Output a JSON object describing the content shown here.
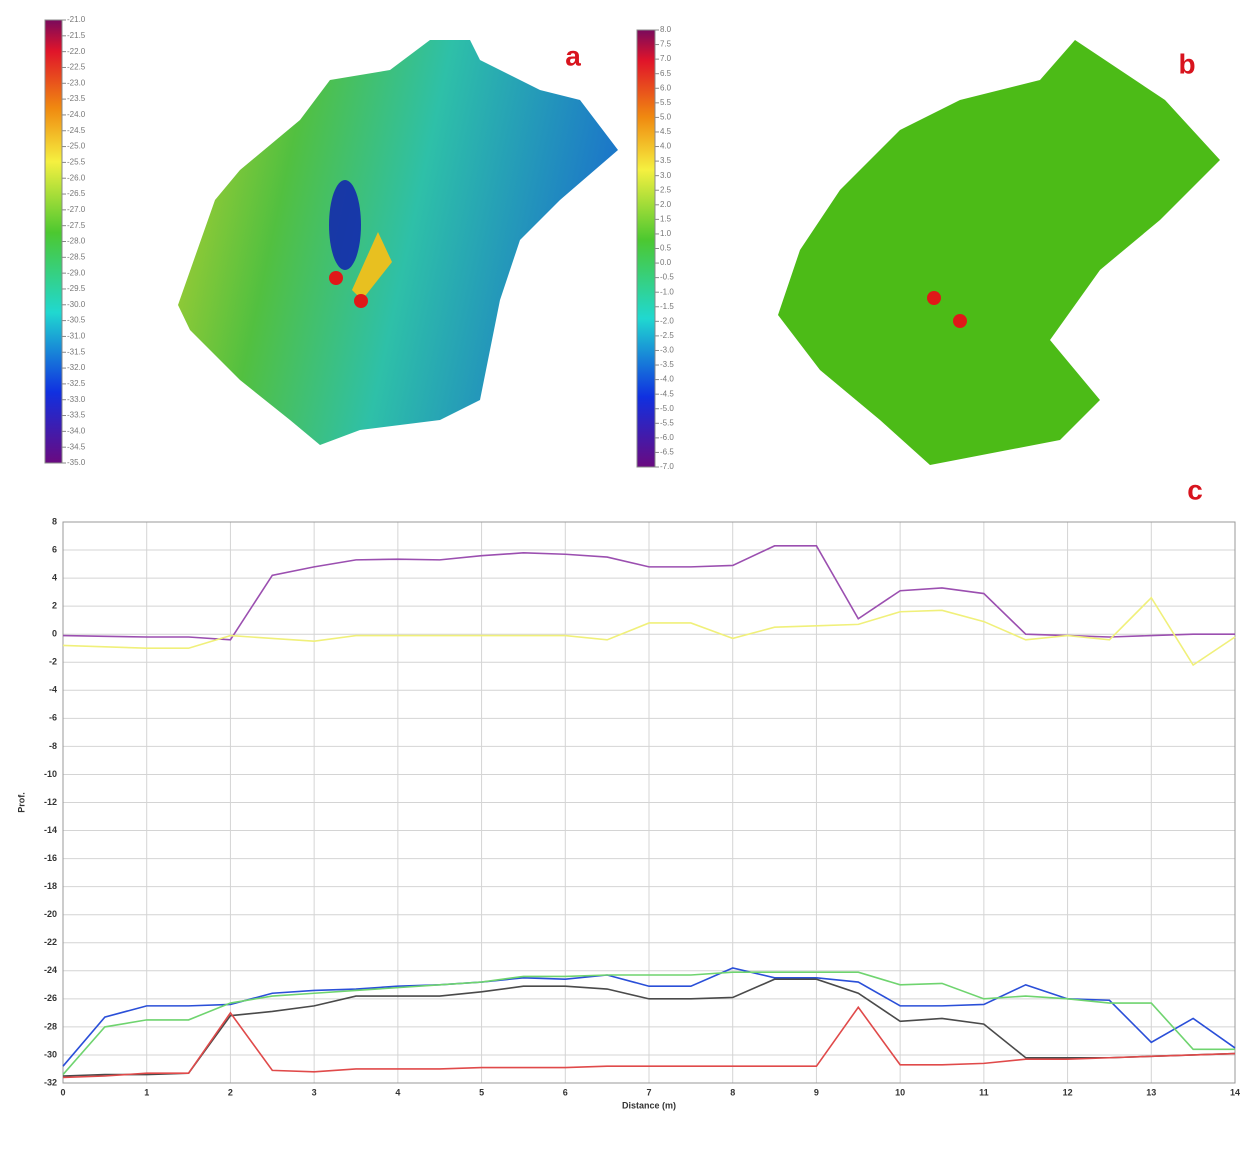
{
  "chart_data": [
    {
      "type": "colorbar",
      "label": "a",
      "ylim": [
        -35,
        -21
      ],
      "yticks": [
        {
          "value": -21,
          "label": "-21.0"
        },
        {
          "value": -21.5,
          "label": "-21.5"
        },
        {
          "value": -22,
          "label": "-22.0"
        },
        {
          "value": -22.5,
          "label": "-22.5"
        },
        {
          "value": -23,
          "label": "-23.0"
        },
        {
          "value": -23.5,
          "label": "-23.5"
        },
        {
          "value": -24,
          "label": "-24.0"
        },
        {
          "value": -24.5,
          "label": "-24.5"
        },
        {
          "value": -25,
          "label": "-25.0"
        },
        {
          "value": -25.5,
          "label": "-25.5"
        },
        {
          "value": -26,
          "label": "-26.0"
        },
        {
          "value": -26.5,
          "label": "-26.5"
        },
        {
          "value": -27,
          "label": "-27.0"
        },
        {
          "value": -27.5,
          "label": "-27.5"
        },
        {
          "value": -28,
          "label": "-28.0"
        },
        {
          "value": -28.5,
          "label": "-28.5"
        },
        {
          "value": -29,
          "label": "-29.0"
        },
        {
          "value": -29.5,
          "label": "-29.5"
        },
        {
          "value": -30,
          "label": "-30.0"
        },
        {
          "value": -30.5,
          "label": "-30.5"
        },
        {
          "value": -31,
          "label": "-31.0"
        },
        {
          "value": -31.5,
          "label": "-31.5"
        },
        {
          "value": -32,
          "label": "-32.0"
        },
        {
          "value": -32.5,
          "label": "-32.5"
        },
        {
          "value": -33,
          "label": "-33.0"
        },
        {
          "value": -33.5,
          "label": "-33.5"
        },
        {
          "value": -34,
          "label": "-34.0"
        },
        {
          "value": -34.5,
          "label": "-34.5"
        },
        {
          "value": -35,
          "label": "-35.0"
        }
      ]
    },
    {
      "type": "colorbar",
      "label": "b",
      "ylim": [
        -7,
        8
      ],
      "yticks": [
        {
          "value": -7,
          "label": "-7.0"
        },
        {
          "value": -6.5,
          "label": "-6.5"
        },
        {
          "value": -6,
          "label": "-6.0"
        },
        {
          "value": -5.5,
          "label": "-5.5"
        },
        {
          "value": -5,
          "label": "-5.0"
        },
        {
          "value": -4.5,
          "label": "-4.5"
        },
        {
          "value": -4,
          "label": "-4.0"
        },
        {
          "value": -3.5,
          "label": "-3.5"
        },
        {
          "value": -3,
          "label": "-3.0"
        },
        {
          "value": -2.5,
          "label": "-2.5"
        },
        {
          "value": -2,
          "label": "-2.0"
        },
        {
          "value": -1.5,
          "label": "-1.5"
        },
        {
          "value": -1,
          "label": "-1.0"
        },
        {
          "value": -0.5,
          "label": "-0.5"
        },
        {
          "value": 0,
          "label": "0.0"
        },
        {
          "value": 0.5,
          "label": "0.5"
        },
        {
          "value": 1,
          "label": "1.0"
        },
        {
          "value": 1.5,
          "label": "1.5"
        },
        {
          "value": 2,
          "label": "2.0"
        },
        {
          "value": 2.5,
          "label": "2.5"
        },
        {
          "value": 3,
          "label": "3.0"
        },
        {
          "value": 3.5,
          "label": "3.5"
        },
        {
          "value": 4,
          "label": "4.0"
        },
        {
          "value": 4.5,
          "label": "4.5"
        },
        {
          "value": 5,
          "label": "5.0"
        },
        {
          "value": 5.5,
          "label": "5.5"
        },
        {
          "value": 6,
          "label": "6.0"
        },
        {
          "value": 6.5,
          "label": "6.5"
        },
        {
          "value": 7,
          "label": "7.0"
        },
        {
          "value": 7.5,
          "label": "7.5"
        },
        {
          "value": 8,
          "label": "8.0"
        }
      ]
    },
    {
      "type": "line",
      "label": "c",
      "x_label": "Distance (m)",
      "y_label": "Prof.",
      "grid": true,
      "x": [
        0,
        0.5,
        1,
        1.5,
        2,
        2.5,
        3,
        3.5,
        4,
        4.5,
        5,
        5.5,
        6,
        6.5,
        7,
        7.5,
        8,
        8.5,
        9,
        9.5,
        10,
        10.5,
        11,
        11.5,
        12,
        12.5,
        13,
        13.5,
        14
      ],
      "xlim": [
        0,
        14
      ],
      "xticks": [
        0,
        1,
        2,
        3,
        4,
        5,
        6,
        7,
        8,
        9,
        10,
        11,
        12,
        13,
        14
      ],
      "ylim": [
        -32,
        8
      ],
      "yticks": [
        8,
        6,
        4,
        2,
        0,
        -2,
        -4,
        -6,
        -8,
        -10,
        -12,
        -14,
        -16,
        -18,
        -20,
        -22,
        -24,
        -26,
        -28,
        -30,
        -32
      ],
      "series": [
        {
          "color": "#9b4fb0",
          "values": [
            -0.1,
            -0.15,
            -0.2,
            -0.2,
            -0.4,
            4.2,
            4.8,
            5.3,
            5.35,
            5.3,
            5.6,
            5.8,
            5.7,
            5.5,
            4.8,
            4.8,
            4.9,
            6.3,
            6.3,
            1.1,
            3.1,
            3.3,
            2.9,
            0,
            -0.1,
            -0.2,
            -0.1,
            0,
            0
          ]
        },
        {
          "color": "#f0f07a",
          "values": [
            -0.8,
            -0.9,
            -1.0,
            -1.0,
            -0.1,
            -0.3,
            -0.5,
            -0.1,
            -0.1,
            -0.1,
            -0.1,
            -0.1,
            -0.1,
            -0.4,
            0.8,
            0.8,
            -0.3,
            0.5,
            0.6,
            0.7,
            1.6,
            1.7,
            0.9,
            -0.4,
            -0.1,
            -0.4,
            2.6,
            -2.2,
            -0.2
          ]
        },
        {
          "color": "#2a4fd8",
          "values": [
            -30.8,
            -27.3,
            -26.5,
            -26.5,
            -26.4,
            -25.6,
            -25.4,
            -25.3,
            -25.1,
            -25.0,
            -24.8,
            -24.5,
            -24.6,
            -24.3,
            -25.1,
            -25.1,
            -23.8,
            -24.5,
            -24.5,
            -24.8,
            -26.5,
            -26.5,
            -26.4,
            -25.0,
            -26.0,
            -26.1,
            -29.1,
            -27.4,
            -29.5
          ]
        },
        {
          "color": "#6fd46f",
          "values": [
            -31.4,
            -28.0,
            -27.5,
            -27.5,
            -26.3,
            -25.8,
            -25.6,
            -25.4,
            -25.2,
            -25.0,
            -24.8,
            -24.4,
            -24.4,
            -24.3,
            -24.3,
            -24.3,
            -24.1,
            -24.1,
            -24.1,
            -24.1,
            -25.0,
            -24.9,
            -26.0,
            -25.8,
            -26.0,
            -26.3,
            -26.3,
            -29.6,
            -29.6
          ]
        },
        {
          "color": "#4a4a4a",
          "values": [
            -31.5,
            -31.4,
            -31.4,
            -31.3,
            -27.2,
            -26.9,
            -26.5,
            -25.8,
            -25.8,
            -25.8,
            -25.5,
            -25.1,
            -25.1,
            -25.3,
            -26.0,
            -26.0,
            -25.9,
            -24.6,
            -24.6,
            -25.6,
            -27.6,
            -27.4,
            -27.8,
            -30.2,
            -30.2,
            -30.2,
            -30.1,
            -30.0,
            -29.9
          ]
        },
        {
          "color": "#e04a4a",
          "values": [
            -31.6,
            -31.5,
            -31.3,
            -31.3,
            -27.0,
            -31.1,
            -31.2,
            -31.0,
            -31.0,
            -31.0,
            -30.9,
            -30.9,
            -30.9,
            -30.8,
            -30.8,
            -30.8,
            -30.8,
            -30.8,
            -30.8,
            -26.6,
            -30.7,
            -30.7,
            -30.6,
            -30.3,
            -30.3,
            -30.2,
            -30.1,
            -30.0,
            -29.9
          ]
        }
      ]
    }
  ]
}
